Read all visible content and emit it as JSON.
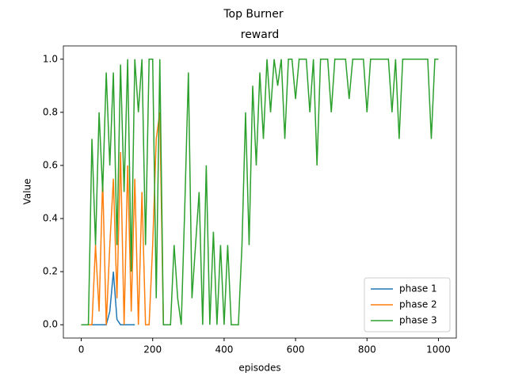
{
  "chart_data": {
    "type": "line",
    "suptitle": "Top Burner",
    "title": "reward",
    "xlabel": "episodes",
    "ylabel": "Value",
    "xlim": [
      -50,
      1050
    ],
    "ylim": [
      -0.05,
      1.05
    ],
    "xticks": [
      0,
      200,
      400,
      600,
      800,
      1000
    ],
    "yticks": [
      {
        "value": 0,
        "label": "0.0"
      },
      0.2,
      0.4,
      0.6,
      0.8,
      {
        "value": 1,
        "label": "1.0"
      }
    ],
    "legend": "lower right",
    "series": [
      {
        "name": "phase 1",
        "color": "#1f77b4",
        "x": [
          0,
          10,
          20,
          30,
          40,
          50,
          60,
          70,
          80,
          90,
          100,
          110,
          120,
          130,
          140,
          150
        ],
        "values": [
          0,
          0,
          0,
          0,
          0,
          0,
          0,
          0,
          0.05,
          0.2,
          0.02,
          0,
          0,
          0,
          0,
          0
        ]
      },
      {
        "name": "phase 2",
        "color": "#ff7f0e",
        "x": [
          0,
          10,
          20,
          30,
          40,
          50,
          60,
          70,
          80,
          90,
          100,
          110,
          120,
          130,
          140,
          150,
          160,
          170,
          180,
          190,
          200,
          210,
          220,
          230
        ],
        "values": [
          0,
          0,
          0,
          0,
          0.3,
          0.05,
          0.55,
          0,
          0.3,
          0.55,
          0.1,
          0.65,
          0,
          0.6,
          0.05,
          0.55,
          0,
          0.5,
          0,
          0,
          0.3,
          0.7,
          0.8,
          0
        ]
      },
      {
        "name": "phase 3",
        "color": "#2ca02c",
        "x": [
          0,
          10,
          20,
          30,
          40,
          50,
          60,
          70,
          80,
          90,
          100,
          110,
          120,
          130,
          140,
          150,
          160,
          170,
          180,
          190,
          200,
          210,
          220,
          230,
          240,
          250,
          260,
          270,
          280,
          290,
          300,
          310,
          320,
          330,
          340,
          350,
          360,
          370,
          380,
          390,
          400,
          410,
          420,
          430,
          440,
          450,
          460,
          470,
          480,
          490,
          500,
          510,
          520,
          530,
          540,
          550,
          560,
          570,
          580,
          590,
          600,
          610,
          620,
          630,
          640,
          650,
          660,
          670,
          680,
          690,
          700,
          710,
          720,
          730,
          740,
          750,
          760,
          770,
          780,
          790,
          800,
          810,
          820,
          830,
          840,
          850,
          860,
          870,
          880,
          890,
          900,
          910,
          920,
          930,
          940,
          950,
          960,
          970,
          980,
          990,
          1000
        ],
        "values": [
          0,
          0,
          0,
          0.7,
          0.3,
          0.8,
          0.5,
          0.95,
          0.6,
          0.95,
          0.3,
          0.98,
          0.5,
          1,
          0.2,
          1,
          0.8,
          1,
          0.3,
          1,
          1,
          0.1,
          1,
          0,
          0,
          0,
          0.3,
          0.1,
          0,
          0.45,
          0.95,
          0.1,
          0.3,
          0.5,
          0,
          0.6,
          0,
          0.35,
          0,
          0.3,
          0,
          0.3,
          0,
          0,
          0,
          0.3,
          0.8,
          0.3,
          0.9,
          0.6,
          0.95,
          0.7,
          1,
          0.8,
          1,
          0.9,
          1,
          0.7,
          1,
          1,
          0.85,
          1,
          1,
          1,
          0.8,
          1,
          0.6,
          1,
          1,
          1,
          0.8,
          1,
          1,
          1,
          1,
          0.85,
          1,
          1,
          1,
          1,
          0.8,
          1,
          1,
          1,
          1,
          1,
          1,
          0.8,
          1,
          0.7,
          1,
          1,
          1,
          1,
          1,
          1,
          1,
          1,
          0.7,
          1,
          1
        ]
      }
    ]
  }
}
